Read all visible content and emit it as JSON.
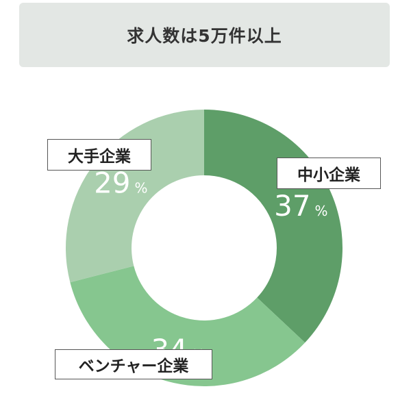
{
  "header": {
    "title": "求人数は5万件以上"
  },
  "chart_data": {
    "type": "pie",
    "donut": true,
    "title": "求人数は5万件以上",
    "categories": [
      "中小企業",
      "ベンチャー企業",
      "大手企業"
    ],
    "values": [
      37,
      34,
      29
    ],
    "unit": "%",
    "colors": {
      "中小企業": "#5e9e68",
      "ベンチャー企業": "#86c68f",
      "大手企業": "#aacfae"
    }
  }
}
